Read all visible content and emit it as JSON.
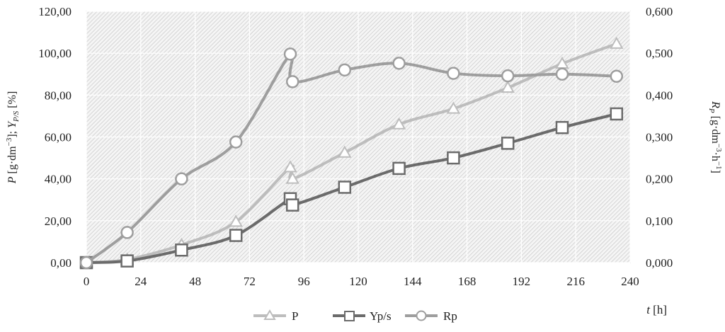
{
  "chart_data": {
    "type": "line",
    "title": "",
    "x": [
      0,
      18,
      42,
      66,
      90,
      91,
      114,
      138,
      162,
      186,
      210,
      234
    ],
    "xticks": [
      0,
      24,
      48,
      72,
      96,
      120,
      144,
      168,
      192,
      216,
      240
    ],
    "xlim": [
      0,
      240
    ],
    "xlabel_prefix": "t",
    "xlabel_unit": " [h]",
    "ylim_left": [
      0,
      120
    ],
    "yticks_left": [
      "0,00",
      "20,00",
      "40,00",
      "60,00",
      "80,00",
      "100,00",
      "120,00"
    ],
    "ylim_right": [
      0,
      0.6
    ],
    "yticks_right": [
      "0,000",
      "0,100",
      "0,200",
      "0,300",
      "0,400",
      "0,500",
      "0,600"
    ],
    "ylabel_left": {
      "p": "P",
      "unit1": " [g·dm",
      "exp1": "−3",
      "mid": "]; ",
      "y": "Y",
      "ysub": "P/S",
      "unit2": " [%]"
    },
    "ylabel_right": {
      "r": "R",
      "rsub": "P",
      "unit1": " [g·dm",
      "exp1": "−3",
      "mid": "·h",
      "exp2": "−1",
      "end": "]"
    },
    "grid": true,
    "legend_position": "bottom",
    "series": [
      {
        "name": "P",
        "axis": "left",
        "marker": "triangle",
        "color": "#bdbdbd",
        "values": [
          0,
          1.5,
          8.5,
          19.5,
          45.5,
          40,
          52.5,
          66,
          73.5,
          83.5,
          95,
          104.5
        ]
      },
      {
        "name": "Yp/s",
        "axis": "left",
        "marker": "square",
        "color": "#6b6b6b",
        "values": [
          0,
          0.8,
          6,
          13,
          30.5,
          27.5,
          36,
          45,
          50,
          57,
          64.5,
          71
        ]
      },
      {
        "name": "Rp",
        "axis": "right",
        "marker": "circle",
        "color": "#9e9e9e",
        "values": [
          0,
          0.072,
          0.2,
          0.288,
          0.498,
          0.432,
          0.46,
          0.476,
          0.452,
          0.446,
          0.45,
          0.445
        ]
      }
    ]
  }
}
